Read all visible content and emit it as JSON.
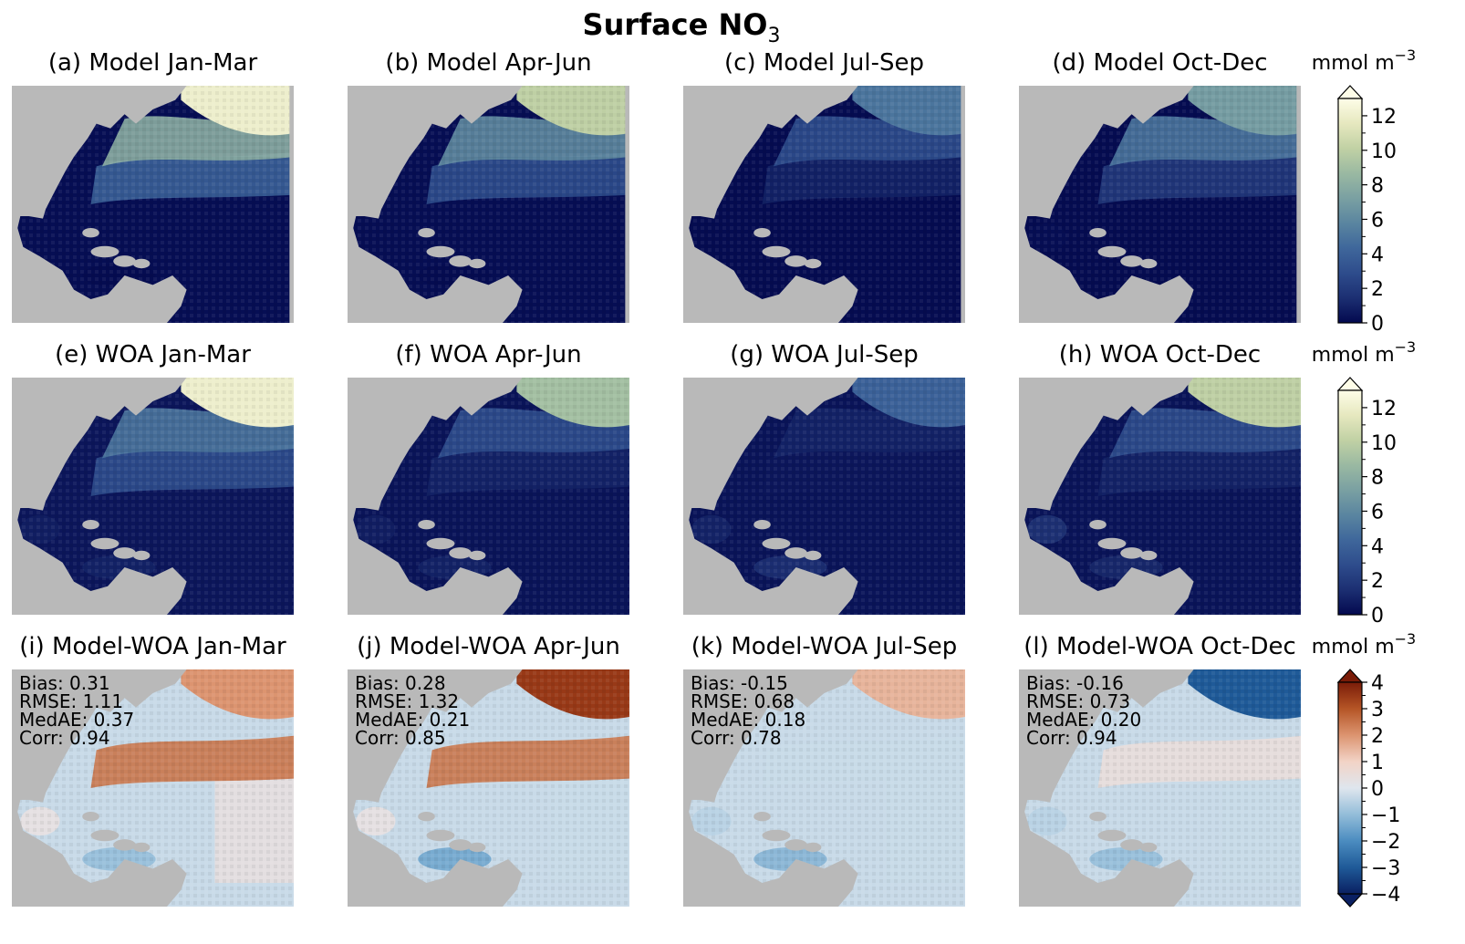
{
  "figure": {
    "title": "Surface NO",
    "title_subscript": "3"
  },
  "panels": [
    {
      "label": "(a) Model Jan-Mar",
      "row": "model",
      "season": "Jan-Mar"
    },
    {
      "label": "(b) Model Apr-Jun",
      "row": "model",
      "season": "Apr-Jun"
    },
    {
      "label": "(c) Model Jul-Sep",
      "row": "model",
      "season": "Jul-Sep"
    },
    {
      "label": "(d) Model Oct-Dec",
      "row": "model",
      "season": "Oct-Dec"
    },
    {
      "label": "(e) WOA Jan-Mar",
      "row": "woa",
      "season": "Jan-Mar"
    },
    {
      "label": "(f) WOA Apr-Jun",
      "row": "woa",
      "season": "Apr-Jun"
    },
    {
      "label": "(g) WOA Jul-Sep",
      "row": "woa",
      "season": "Jul-Sep"
    },
    {
      "label": "(h) WOA Oct-Dec",
      "row": "woa",
      "season": "Oct-Dec"
    },
    {
      "label": "(i) Model-WOA Jan-Mar",
      "row": "diff",
      "season": "Jan-Mar",
      "stats": [
        "Bias: 0.31",
        "RMSE: 1.11",
        "MedAE: 0.37",
        "Corr: 0.94"
      ]
    },
    {
      "label": "(j) Model-WOA Apr-Jun",
      "row": "diff",
      "season": "Apr-Jun",
      "stats": [
        "Bias: 0.28",
        "RMSE: 1.32",
        "MedAE: 0.21",
        "Corr: 0.85"
      ]
    },
    {
      "label": "(k) Model-WOA Jul-Sep",
      "row": "diff",
      "season": "Jul-Sep",
      "stats": [
        "Bias: -0.15",
        "RMSE: 0.68",
        "MedAE: 0.18",
        "Corr: 0.78"
      ]
    },
    {
      "label": "(l) Model-WOA Oct-Dec",
      "row": "diff",
      "season": "Oct-Dec",
      "stats": [
        "Bias: -0.16",
        "RMSE: 0.73",
        "MedAE: 0.20",
        "Corr: 0.94"
      ]
    }
  ],
  "colorbars": [
    {
      "unit": "mmol m",
      "unit_sup": "−3",
      "ticks": [
        "0",
        "2",
        "4",
        "6",
        "8",
        "10",
        "12"
      ],
      "range": [
        0,
        13
      ],
      "extend": "max",
      "cmap": "sequential"
    },
    {
      "unit": "mmol m",
      "unit_sup": "−3",
      "ticks": [
        "0",
        "2",
        "4",
        "6",
        "8",
        "10",
        "12"
      ],
      "range": [
        0,
        13
      ],
      "extend": "max",
      "cmap": "sequential"
    },
    {
      "unit": "mmol m",
      "unit_sup": "−3",
      "ticks": [
        "−4",
        "−3",
        "−2",
        "−1",
        "0",
        "1",
        "2",
        "3",
        "4"
      ],
      "range": [
        -4,
        4
      ],
      "extend": "both",
      "cmap": "diverging"
    }
  ],
  "colors": {
    "land": "#b9b9b9",
    "sequential": [
      "#03094f",
      "#1c2f72",
      "#2e4c8c",
      "#3f679b",
      "#5a85a0",
      "#7aa0a2",
      "#9ab9a2",
      "#c1d1a4",
      "#e6e8bf",
      "#fefde8"
    ],
    "diverging": [
      "#0a2062",
      "#1f5a98",
      "#4b8cc0",
      "#93bdd9",
      "#dfe6ee",
      "#f2d3c6",
      "#dc9470",
      "#b55526",
      "#7a1c08"
    ]
  },
  "chart_data": [
    {
      "type": "heatmap",
      "panel": "a",
      "title": "(a) Model Jan-Mar",
      "field": "surface NO3",
      "units": "mmol m-3",
      "vmin": 0,
      "vmax": 13,
      "regions": {
        "subpolar_north": 12,
        "shelf_slope": 8,
        "gulf_stream_band": 4,
        "subtropical_gyre": 0.2,
        "gulf_of_mexico": 0.2,
        "caribbean": 0.1
      }
    },
    {
      "type": "heatmap",
      "panel": "b",
      "title": "(b) Model Apr-Jun",
      "field": "surface NO3",
      "units": "mmol m-3",
      "vmin": 0,
      "vmax": 13,
      "regions": {
        "subpolar_north": 10,
        "shelf_slope": 6,
        "gulf_stream_band": 3,
        "subtropical_gyre": 0.2,
        "gulf_of_mexico": 0.2,
        "caribbean": 0.1
      }
    },
    {
      "type": "heatmap",
      "panel": "c",
      "title": "(c) Model Jul-Sep",
      "field": "surface NO3",
      "units": "mmol m-3",
      "vmin": 0,
      "vmax": 13,
      "regions": {
        "subpolar_north": 5,
        "shelf_slope": 3,
        "gulf_stream_band": 1,
        "subtropical_gyre": 0.1,
        "gulf_of_mexico": 0.1,
        "caribbean": 0.1
      }
    },
    {
      "type": "heatmap",
      "panel": "d",
      "title": "(d) Model Oct-Dec",
      "field": "surface NO3",
      "units": "mmol m-3",
      "vmin": 0,
      "vmax": 13,
      "regions": {
        "subpolar_north": 7,
        "shelf_slope": 5,
        "gulf_stream_band": 2,
        "subtropical_gyre": 0.1,
        "gulf_of_mexico": 0.2,
        "caribbean": 0.1
      }
    },
    {
      "type": "heatmap",
      "panel": "e",
      "title": "(e) WOA Jan-Mar",
      "field": "surface NO3",
      "units": "mmol m-3",
      "vmin": 0,
      "vmax": 13,
      "regions": {
        "subpolar_north": 12,
        "shelf_slope": 5,
        "gulf_stream_band": 3,
        "subtropical_gyre": 0.5,
        "gulf_of_mexico": 0.8,
        "caribbean": 1
      }
    },
    {
      "type": "heatmap",
      "panel": "f",
      "title": "(f) WOA Apr-Jun",
      "field": "surface NO3",
      "units": "mmol m-3",
      "vmin": 0,
      "vmax": 13,
      "regions": {
        "subpolar_north": 9,
        "shelf_slope": 3,
        "gulf_stream_band": 1,
        "subtropical_gyre": 0.4,
        "gulf_of_mexico": 0.8,
        "caribbean": 1
      }
    },
    {
      "type": "heatmap",
      "panel": "g",
      "title": "(g) WOA Jul-Sep",
      "field": "surface NO3",
      "units": "mmol m-3",
      "vmin": 0,
      "vmax": 13,
      "regions": {
        "subpolar_north": 4,
        "shelf_slope": 1,
        "gulf_stream_band": 0.5,
        "subtropical_gyre": 0.4,
        "gulf_of_mexico": 1,
        "caribbean": 1.5
      }
    },
    {
      "type": "heatmap",
      "panel": "h",
      "title": "(h) WOA Oct-Dec",
      "field": "surface NO3",
      "units": "mmol m-3",
      "vmin": 0,
      "vmax": 13,
      "regions": {
        "subpolar_north": 10,
        "shelf_slope": 3,
        "gulf_stream_band": 1,
        "subtropical_gyre": 0.4,
        "gulf_of_mexico": 1.5,
        "caribbean": 1.2
      }
    },
    {
      "type": "heatmap",
      "panel": "i",
      "title": "(i) Model-WOA Jan-Mar",
      "field": "surface NO3 difference",
      "units": "mmol m-3",
      "vmin": -4,
      "vmax": 4,
      "stats": {
        "bias": 0.31,
        "rmse": 1.11,
        "medae": 0.37,
        "corr": 0.94
      },
      "regions": {
        "subpolar_north": 2,
        "gulf_stream_band": 2.5,
        "subtropical_gyre": -0.3,
        "east_tropical": 0.4,
        "gulf_of_mexico": 0.3,
        "caribbean": -1
      }
    },
    {
      "type": "heatmap",
      "panel": "j",
      "title": "(j) Model-WOA Apr-Jun",
      "field": "surface NO3 difference",
      "units": "mmol m-3",
      "vmin": -4,
      "vmax": 4,
      "stats": {
        "bias": 0.28,
        "rmse": 1.32,
        "medae": 0.21,
        "corr": 0.85
      },
      "regions": {
        "subpolar_north": 3.5,
        "gulf_stream_band": 2.5,
        "subtropical_gyre": -0.3,
        "east_tropical": -0.3,
        "gulf_of_mexico": 0.3,
        "caribbean": -1.5
      }
    },
    {
      "type": "heatmap",
      "panel": "k",
      "title": "(k) Model-WOA Jul-Sep",
      "field": "surface NO3 difference",
      "units": "mmol m-3",
      "vmin": -4,
      "vmax": 4,
      "stats": {
        "bias": -0.15,
        "rmse": 0.68,
        "medae": 0.18,
        "corr": 0.78
      },
      "regions": {
        "subpolar_north": 1.5,
        "gulf_stream_band": -0.3,
        "subtropical_gyre": -0.3,
        "east_tropical": -0.3,
        "gulf_of_mexico": -0.5,
        "caribbean": -1.2
      }
    },
    {
      "type": "heatmap",
      "panel": "l",
      "title": "(l) Model-WOA Oct-Dec",
      "field": "surface NO3 difference",
      "units": "mmol m-3",
      "vmin": -4,
      "vmax": 4,
      "stats": {
        "bias": -0.16,
        "rmse": 0.73,
        "medae": 0.2,
        "corr": 0.94
      },
      "regions": {
        "subpolar_north": -3,
        "gulf_stream_band": 0.5,
        "subtropical_gyre": -0.3,
        "east_tropical": -0.3,
        "gulf_of_mexico": -0.5,
        "caribbean": -1
      }
    }
  ]
}
